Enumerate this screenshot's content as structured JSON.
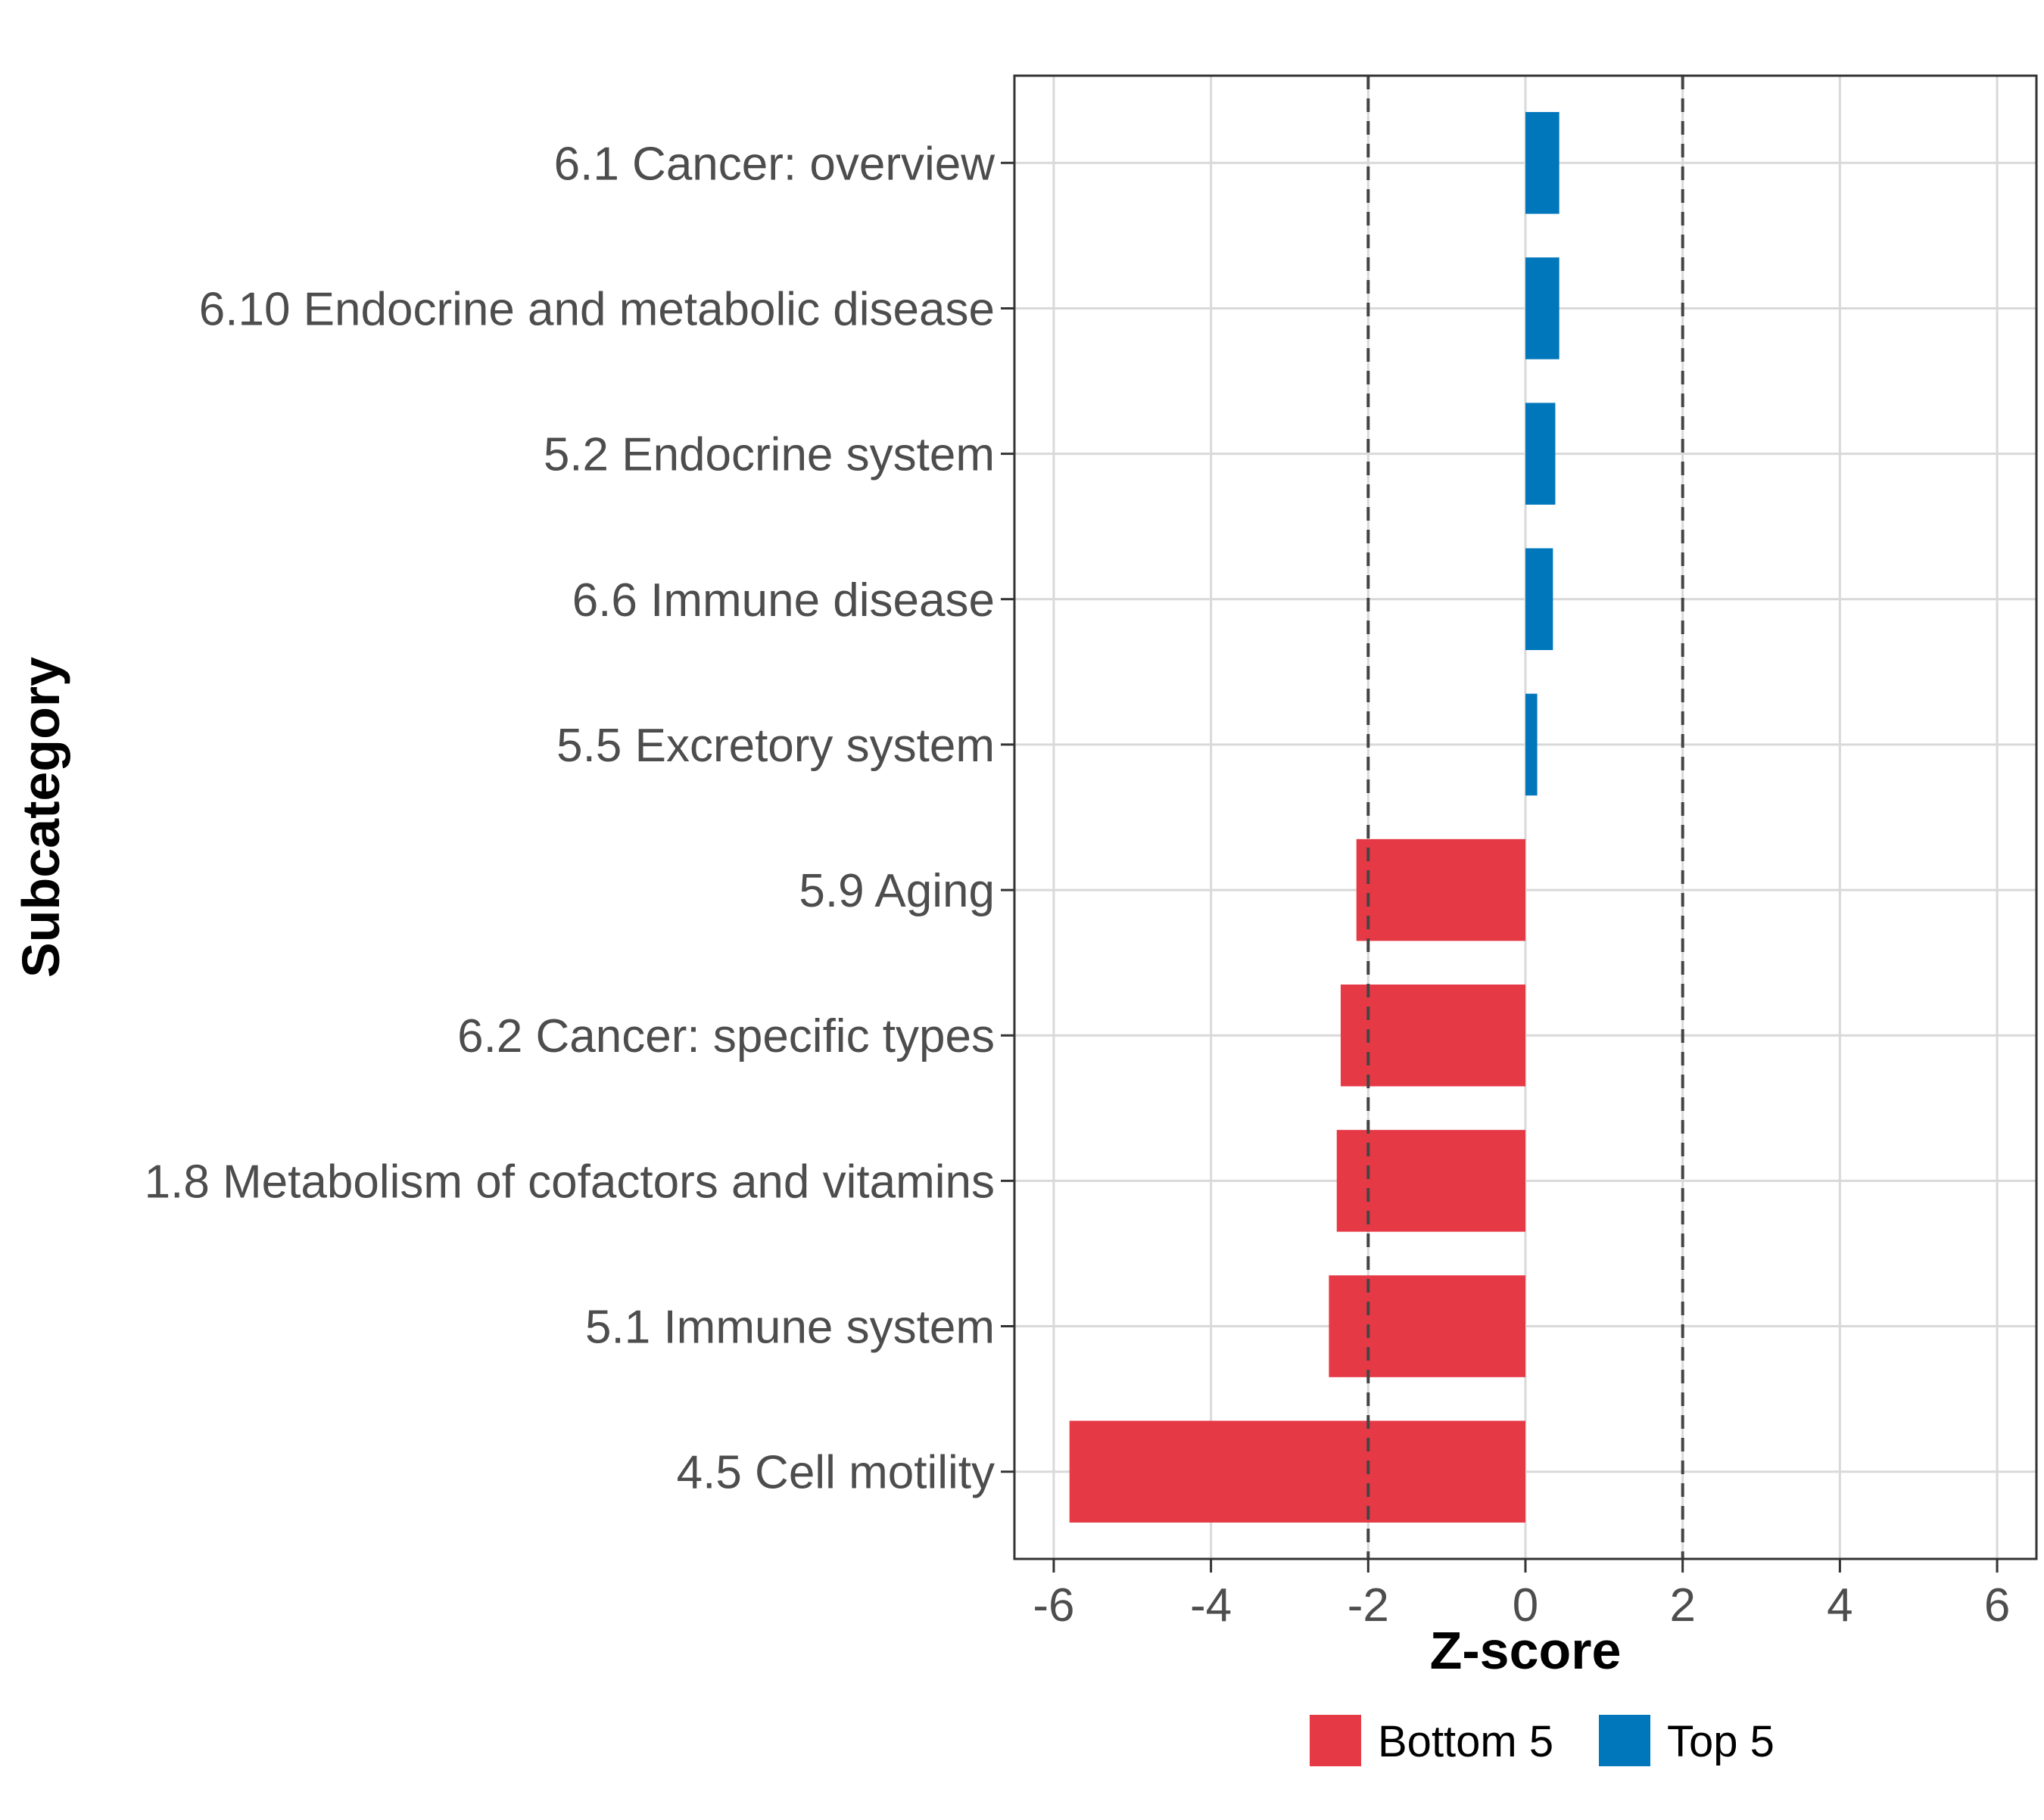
{
  "chart_data": {
    "type": "bar",
    "orientation": "horizontal",
    "title": "",
    "xlabel": "Z-score",
    "ylabel": "Subcategory",
    "xlim": [
      -6.5,
      6.5
    ],
    "xticks": [
      -6,
      -4,
      -2,
      0,
      2,
      4,
      6
    ],
    "xtick_labels": [
      "-6",
      "-4",
      "-2",
      "0",
      "2",
      "4",
      "6"
    ],
    "reference_lines": [
      -2,
      2
    ],
    "grid": true,
    "categories": [
      "6.1 Cancer: overview",
      "6.10 Endocrine and metabolic disease",
      "5.2 Endocrine system",
      "6.6 Immune disease",
      "5.5 Excretory system",
      "5.9 Aging",
      "6.2 Cancer: specific types",
      "1.8 Metabolism of cofactors and vitamins",
      "5.1 Immune system",
      "4.5 Cell motility"
    ],
    "values": [
      0.43,
      0.43,
      0.38,
      0.35,
      0.15,
      -2.15,
      -2.35,
      -2.4,
      -2.5,
      -5.8
    ],
    "groups": [
      "Top 5",
      "Top 5",
      "Top 5",
      "Top 5",
      "Top 5",
      "Bottom 5",
      "Bottom 5",
      "Bottom 5",
      "Bottom 5",
      "Bottom 5"
    ],
    "legend": {
      "position": "bottom",
      "entries": [
        {
          "label": "Bottom 5",
          "color": "#E63946"
        },
        {
          "label": "Top 5",
          "color": "#0077BB"
        }
      ]
    }
  }
}
